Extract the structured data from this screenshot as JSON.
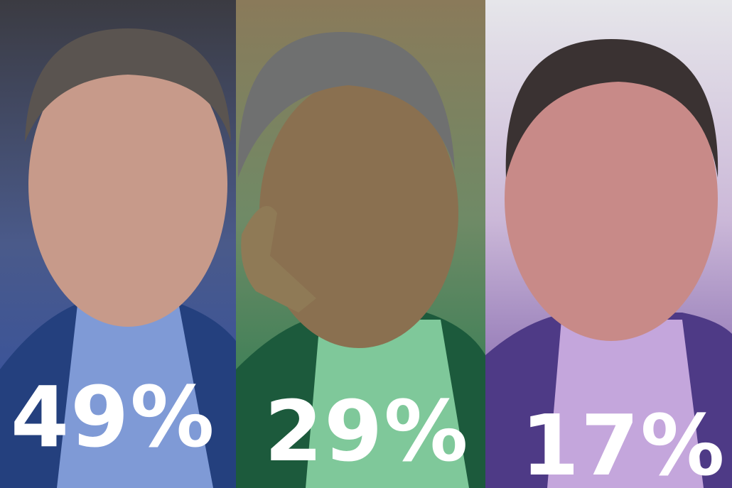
{
  "panels": [
    {
      "label": "49%"
    },
    {
      "label": "29%"
    },
    {
      "label": "17%"
    }
  ]
}
